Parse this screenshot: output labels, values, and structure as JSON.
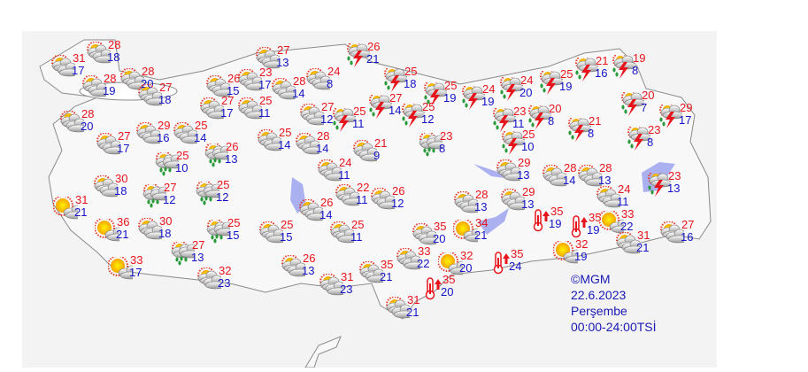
{
  "colors": {
    "max": "#e8141c",
    "min": "#1414c8",
    "legend": "#1a1ab4",
    "land": "#f6f6f6",
    "border": "#8a8a8a",
    "water": "#aab0f0"
  },
  "legend": {
    "copyright": "©MGM",
    "date": "22.6.2023",
    "day": "Perşembe",
    "period": "00:00-24:00TSİ"
  },
  "forecasts": [
    {
      "max": "31",
      "min": "17",
      "condition": "partly-cloudy"
    },
    {
      "max": "28",
      "min": "18",
      "condition": "partly-cloudy"
    },
    {
      "max": "28",
      "min": "19",
      "condition": "partly-cloudy"
    },
    {
      "max": "28",
      "min": "20",
      "condition": "partly-cloudy"
    },
    {
      "max": "27",
      "min": "18",
      "condition": "partly-cloudy"
    },
    {
      "max": "28",
      "min": "20",
      "condition": "partly-cloudy"
    },
    {
      "max": "27",
      "min": "17",
      "condition": "partly-cloudy"
    },
    {
      "max": "29",
      "min": "16",
      "condition": "partly-cloudy"
    },
    {
      "max": "25",
      "min": "14",
      "condition": "partly-cloudy"
    },
    {
      "max": "25",
      "min": "10",
      "condition": "rain-showers"
    },
    {
      "max": "26",
      "min": "13",
      "condition": "rain-showers"
    },
    {
      "max": "27",
      "min": "13",
      "condition": "partly-cloudy"
    },
    {
      "max": "26",
      "min": "15",
      "condition": "partly-cloudy"
    },
    {
      "max": "23",
      "min": "17",
      "condition": "partly-cloudy"
    },
    {
      "max": "28",
      "min": "14",
      "condition": "partly-cloudy"
    },
    {
      "max": "27",
      "min": "17",
      "condition": "partly-cloudy"
    },
    {
      "max": "25",
      "min": "11",
      "condition": "partly-cloudy"
    },
    {
      "max": "25",
      "min": "14",
      "condition": "partly-cloudy"
    },
    {
      "max": "28",
      "min": "14",
      "condition": "partly-cloudy"
    },
    {
      "max": "27",
      "min": "12",
      "condition": "partly-cloudy"
    },
    {
      "max": "24",
      "min": "8",
      "condition": "partly-cloudy"
    },
    {
      "max": "26",
      "min": "21",
      "condition": "thunderstorm"
    },
    {
      "max": "25",
      "min": "11",
      "condition": "thunderstorm"
    },
    {
      "max": "27",
      "min": "14",
      "condition": "thunderstorm"
    },
    {
      "max": "25",
      "min": "18",
      "condition": "thunderstorm"
    },
    {
      "max": "25",
      "min": "12",
      "condition": "thunderstorm"
    },
    {
      "max": "25",
      "min": "19",
      "condition": "thunderstorm"
    },
    {
      "max": "24",
      "min": "19",
      "condition": "thunderstorm"
    },
    {
      "max": "24",
      "min": "20",
      "condition": "thunderstorm"
    },
    {
      "max": "23",
      "min": "11",
      "condition": "thunderstorm"
    },
    {
      "max": "20",
      "min": "8",
      "condition": "thunderstorm"
    },
    {
      "max": "25",
      "min": "10",
      "condition": "thunderstorm"
    },
    {
      "max": "23",
      "min": "8",
      "condition": "rain-showers"
    },
    {
      "max": "21",
      "min": "9",
      "condition": "partly-cloudy"
    },
    {
      "max": "24",
      "min": "11",
      "condition": "partly-cloudy"
    },
    {
      "max": "25",
      "min": "19",
      "condition": "thunderstorm"
    },
    {
      "max": "21",
      "min": "16",
      "condition": "thunderstorm"
    },
    {
      "max": "19",
      "min": "8",
      "condition": "thunderstorm"
    },
    {
      "max": "20",
      "min": "7",
      "condition": "thunderstorm"
    },
    {
      "max": "21",
      "min": "8",
      "condition": "thunderstorm"
    },
    {
      "max": "29",
      "min": "17",
      "condition": "thunderstorm"
    },
    {
      "max": "23",
      "min": "8",
      "condition": "thunderstorm"
    },
    {
      "max": "29",
      "min": "13",
      "condition": "partly-cloudy"
    },
    {
      "max": "28",
      "min": "14",
      "condition": "partly-cloudy"
    },
    {
      "max": "28",
      "min": "13",
      "condition": "partly-cloudy"
    },
    {
      "max": "23",
      "min": "13",
      "condition": "thunderstorm"
    },
    {
      "max": "24",
      "min": "11",
      "condition": "partly-cloudy"
    },
    {
      "max": "28",
      "min": "13",
      "condition": "partly-cloudy"
    },
    {
      "max": "29",
      "min": "13",
      "condition": "partly-cloudy"
    },
    {
      "max": "22",
      "min": "11",
      "condition": "partly-cloudy"
    },
    {
      "max": "26",
      "min": "12",
      "condition": "partly-cloudy"
    },
    {
      "max": "26",
      "min": "14",
      "condition": "partly-cloudy"
    },
    {
      "max": "30",
      "min": "18",
      "condition": "partly-cloudy"
    },
    {
      "max": "27",
      "min": "12",
      "condition": "rain-showers"
    },
    {
      "max": "25",
      "min": "12",
      "condition": "rain-showers"
    },
    {
      "max": "31",
      "min": "21",
      "condition": "sunny"
    },
    {
      "max": "36",
      "min": "21",
      "condition": "sunny"
    },
    {
      "max": "30",
      "min": "18",
      "condition": "partly-cloudy"
    },
    {
      "max": "25",
      "min": "15",
      "condition": "rain-showers"
    },
    {
      "max": "25",
      "min": "15",
      "condition": "partly-cloudy"
    },
    {
      "max": "25",
      "min": "11",
      "condition": "partly-cloudy"
    },
    {
      "max": "27",
      "min": "13",
      "condition": "rain-showers"
    },
    {
      "max": "33",
      "min": "17",
      "condition": "sunny"
    },
    {
      "max": "32",
      "min": "23",
      "condition": "partly-cloudy"
    },
    {
      "max": "26",
      "min": "13",
      "condition": "partly-cloudy"
    },
    {
      "max": "31",
      "min": "23",
      "condition": "partly-cloudy"
    },
    {
      "max": "35",
      "min": "21",
      "condition": "partly-cloudy"
    },
    {
      "max": "33",
      "min": "22",
      "condition": "partly-cloudy"
    },
    {
      "max": "35",
      "min": "20",
      "condition": "partly-cloudy"
    },
    {
      "max": "32",
      "min": "20",
      "condition": "sunny"
    },
    {
      "max": "34",
      "min": "21",
      "condition": "sunny"
    },
    {
      "max": "35",
      "min": "24",
      "condition": "hot"
    },
    {
      "max": "35",
      "min": "20",
      "condition": "hot"
    },
    {
      "max": "31",
      "min": "21",
      "condition": "partly-cloudy"
    },
    {
      "max": "35",
      "min": "19",
      "condition": "hot"
    },
    {
      "max": "35",
      "min": "19",
      "condition": "hot"
    },
    {
      "max": "33",
      "min": "22",
      "condition": "sunny"
    },
    {
      "max": "32",
      "min": "19",
      "condition": "sunny"
    },
    {
      "max": "31",
      "min": "21",
      "condition": "partly-cloudy"
    },
    {
      "max": "27",
      "min": "16",
      "condition": "partly-cloudy"
    }
  ]
}
